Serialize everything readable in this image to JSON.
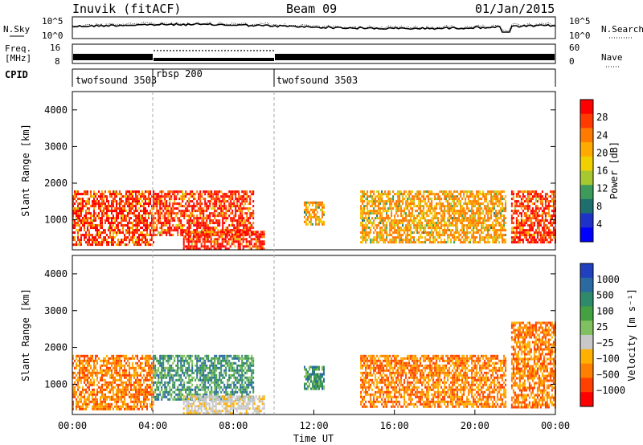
{
  "header": {
    "title": "Inuvik (fitACF)",
    "beam": "Beam 09",
    "date": "01/Jan/2015"
  },
  "panels": {
    "sky": {
      "left_label": "N.Sky",
      "right_label": "N.Search",
      "yticks": [
        "10^5",
        "10^0"
      ],
      "right_yticks": [
        "10^5",
        "10^0"
      ]
    },
    "freq": {
      "left_label_1": "Freq.",
      "left_label_2": "[MHz]",
      "yticks": [
        "16",
        "8"
      ],
      "right_label": "Nave",
      "right_yticks": [
        "60",
        "0"
      ]
    },
    "cpid": {
      "label": "CPID",
      "segments": [
        {
          "name": "twofsound 3503",
          "start_hour": 0,
          "end_hour": 4
        },
        {
          "name": "rbsp 200",
          "start_hour": 4,
          "end_hour": 10
        },
        {
          "name": "twofsound 3503",
          "start_hour": 10,
          "end_hour": 24
        }
      ]
    }
  },
  "chart_data": [
    {
      "type": "heatmap",
      "name": "power",
      "ylabel": "Slant Range [km]",
      "yticks": [
        1000,
        2000,
        3000,
        4000
      ],
      "ylim": [
        180,
        4500
      ],
      "colorbar": {
        "label": "Power [dB]",
        "ticks": [
          "28",
          "24",
          "20",
          "16",
          "12",
          "8",
          "4"
        ],
        "colors": [
          "#ff0000",
          "#ff3a00",
          "#ff7a00",
          "#ffaa00",
          "#f0d000",
          "#a8c832",
          "#3c9a5a",
          "#1e6e6e",
          "#1e32c8",
          "#0000ff"
        ]
      },
      "regions": [
        {
          "t0": 0.0,
          "t1": 4.0,
          "r0": 350,
          "r1": 1800,
          "level": "strong"
        },
        {
          "t0": 4.0,
          "t1": 9.0,
          "r0": 600,
          "r1": 1800,
          "level": "strong"
        },
        {
          "t0": 5.5,
          "t1": 9.5,
          "r0": 200,
          "r1": 700,
          "level": "strong"
        },
        {
          "t0": 11.5,
          "t1": 12.5,
          "r0": 900,
          "r1": 1500,
          "level": "medium"
        },
        {
          "t0": 14.3,
          "t1": 21.5,
          "r0": 400,
          "r1": 1800,
          "level": "medium"
        },
        {
          "t0": 21.8,
          "t1": 24.0,
          "r0": 400,
          "r1": 1800,
          "level": "strong"
        }
      ]
    },
    {
      "type": "heatmap",
      "name": "velocity",
      "xlabel": "Time UT",
      "ylabel": "Slant Range [km]",
      "yticks": [
        1000,
        2000,
        3000,
        4000
      ],
      "ylim": [
        180,
        4500
      ],
      "xticks": [
        "00:00",
        "04:00",
        "08:00",
        "12:00",
        "16:00",
        "20:00",
        "00:00"
      ],
      "xlim": [
        0,
        24
      ],
      "colorbar": {
        "label": "Velocity [m s⁻¹]",
        "ticks": [
          "1000",
          "500",
          "100",
          "25",
          "−25",
          "−100",
          "−500",
          "−1000"
        ],
        "colors": [
          "#2040c0",
          "#2a6aa0",
          "#2e8a6a",
          "#44a040",
          "#80c060",
          "#c8c8c8",
          "#ffb000",
          "#ff8000",
          "#ff4000",
          "#ff0000"
        ]
      },
      "regions": [
        {
          "t0": 0.0,
          "t1": 4.0,
          "r0": 350,
          "r1": 1800,
          "sign": "negative"
        },
        {
          "t0": 4.0,
          "t1": 9.0,
          "r0": 600,
          "r1": 1800,
          "sign": "positive"
        },
        {
          "t0": 5.5,
          "t1": 9.5,
          "r0": 200,
          "r1": 700,
          "sign": "near-zero"
        },
        {
          "t0": 11.5,
          "t1": 12.5,
          "r0": 900,
          "r1": 1500,
          "sign": "positive"
        },
        {
          "t0": 14.3,
          "t1": 21.5,
          "r0": 400,
          "r1": 1800,
          "sign": "negative"
        },
        {
          "t0": 21.8,
          "t1": 24.0,
          "r0": 400,
          "r1": 2700,
          "sign": "negative"
        }
      ]
    }
  ]
}
